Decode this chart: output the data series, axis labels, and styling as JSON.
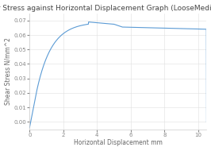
{
  "title": "Shear Stress against Horizontal Displacement Graph (LooseMediumPSample)",
  "xlabel": "Horizontal Displacement mm",
  "ylabel": "Shear Stress N/mm²2",
  "line_color": "#5b9bd5",
  "background_color": "#ffffff",
  "plot_bg_color": "#ffffff",
  "grid_color": "#e0e0e0",
  "xlim": [
    0,
    10.5
  ],
  "ylim": [
    -0.005,
    0.075
  ],
  "yticks": [
    0.0,
    0.01,
    0.02,
    0.03,
    0.04,
    0.05,
    0.06,
    0.07
  ],
  "xticks": [
    0,
    2,
    4,
    6,
    8,
    10
  ],
  "title_fontsize": 6.5,
  "label_fontsize": 5.5,
  "tick_fontsize": 5.0
}
